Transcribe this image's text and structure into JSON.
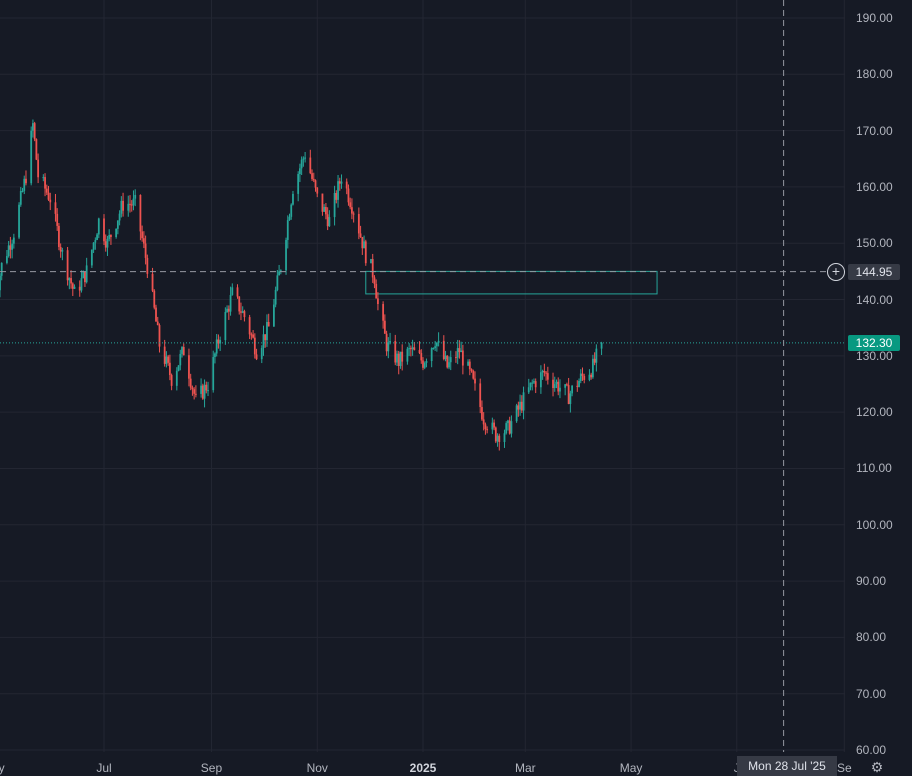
{
  "chart_data": {
    "type": "candlestick",
    "y_axis": {
      "min": 60,
      "max": 190,
      "tick_labels": [
        "190.00",
        "180.00",
        "170.00",
        "160.00",
        "150.00",
        "140.00",
        "130.00",
        "120.00",
        "110.00",
        "100.00",
        "90.00",
        "80.00",
        "70.00",
        "60.00"
      ]
    },
    "x_axis": {
      "tick_labels": [
        {
          "label": "ay",
          "date": "2024-05-01",
          "bold": false
        },
        {
          "label": "Jul",
          "date": "2024-07-01",
          "bold": false
        },
        {
          "label": "Sep",
          "date": "2024-09-01",
          "bold": false
        },
        {
          "label": "Nov",
          "date": "2024-11-01",
          "bold": false
        },
        {
          "label": "2025",
          "date": "2025-01-01",
          "bold": true
        },
        {
          "label": "Mar",
          "date": "2025-03-01",
          "bold": false
        },
        {
          "label": "May",
          "date": "2025-05-01",
          "bold": false
        },
        {
          "label": "J",
          "date": "2025-07-01",
          "bold": false
        },
        {
          "label": "Se",
          "date": "2025-09-01",
          "bold": false
        }
      ]
    },
    "grid": true,
    "up_color": "#26a69a",
    "down_color": "#ef5350",
    "price_path": [
      [
        "2024-04-29",
        140
      ],
      [
        "2024-05-03",
        146
      ],
      [
        "2024-05-10",
        152
      ],
      [
        "2024-05-17",
        162
      ],
      [
        "2024-05-21",
        171
      ],
      [
        "2024-05-24",
        162
      ],
      [
        "2024-05-31",
        158
      ],
      [
        "2024-06-07",
        148
      ],
      [
        "2024-06-14",
        141
      ],
      [
        "2024-06-21",
        145
      ],
      [
        "2024-06-28",
        154
      ],
      [
        "2024-07-03",
        150
      ],
      [
        "2024-07-12",
        157
      ],
      [
        "2024-07-19",
        157
      ],
      [
        "2024-07-26",
        146
      ],
      [
        "2024-08-02",
        132
      ],
      [
        "2024-08-09",
        126
      ],
      [
        "2024-08-16",
        131
      ],
      [
        "2024-08-23",
        122
      ],
      [
        "2024-08-30",
        125
      ],
      [
        "2024-09-06",
        134
      ],
      [
        "2024-09-13",
        141
      ],
      [
        "2024-09-20",
        137
      ],
      [
        "2024-09-27",
        131
      ],
      [
        "2024-10-04",
        135
      ],
      [
        "2024-10-11",
        146
      ],
      [
        "2024-10-18",
        160
      ],
      [
        "2024-10-25",
        166
      ],
      [
        "2024-11-01",
        158
      ],
      [
        "2024-11-08",
        154
      ],
      [
        "2024-11-15",
        162
      ],
      [
        "2024-11-22",
        156
      ],
      [
        "2024-11-29",
        148
      ],
      [
        "2024-12-04",
        144
      ],
      [
        "2024-12-06",
        139
      ],
      [
        "2024-12-11",
        132
      ],
      [
        "2024-12-18",
        129
      ],
      [
        "2024-12-25",
        131
      ],
      [
        "2025-01-01",
        129
      ],
      [
        "2025-01-08",
        133
      ],
      [
        "2025-01-15",
        128
      ],
      [
        "2025-01-22",
        131
      ],
      [
        "2025-01-29",
        126
      ],
      [
        "2025-02-05",
        119
      ],
      [
        "2025-02-12",
        116
      ],
      [
        "2025-02-19",
        117
      ],
      [
        "2025-02-26",
        121
      ],
      [
        "2025-03-05",
        125
      ],
      [
        "2025-03-12",
        127
      ],
      [
        "2025-03-19",
        125
      ],
      [
        "2025-03-26",
        123
      ],
      [
        "2025-04-02",
        126
      ],
      [
        "2025-04-09",
        128
      ],
      [
        "2025-04-14",
        132.3
      ]
    ],
    "last_price": 132.3,
    "last_price_label": "132.30",
    "crosshair_price": 144.95,
    "crosshair_price_label": "144.95",
    "crosshair_date_label": "Mon 28 Jul '25",
    "zone": {
      "start_date": "2024-11-29",
      "end_date": "2025-05-16",
      "top": 145,
      "bottom": 141,
      "color": "#26a69a"
    }
  }
}
